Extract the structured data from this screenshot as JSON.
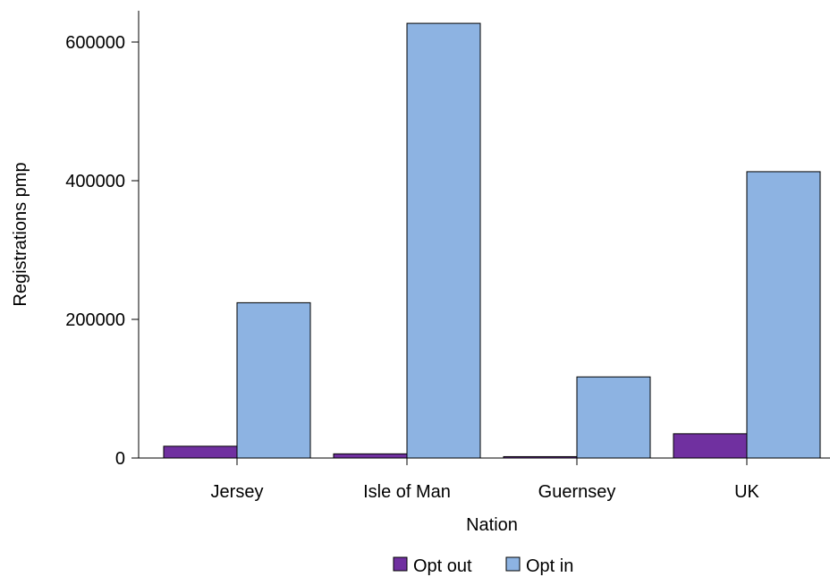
{
  "chart_data": {
    "type": "bar",
    "title": "",
    "xlabel": "Nation",
    "ylabel": "Registrations pmp",
    "categories": [
      "Jersey",
      "Isle of Man",
      "Guernsey",
      "UK"
    ],
    "series": [
      {
        "name": "Opt out",
        "values": [
          17000,
          6000,
          2000,
          35000
        ],
        "color": "#7030a0"
      },
      {
        "name": "Opt in",
        "values": [
          224000,
          627000,
          117000,
          413000
        ],
        "color": "#8db3e2"
      }
    ],
    "ylim": [
      0,
      640000
    ],
    "yticks": [
      0,
      200000,
      400000,
      600000
    ],
    "ytick_labels": [
      "0",
      "200000",
      "400000",
      "600000"
    ],
    "grid": false,
    "legend_position": "bottom-center"
  }
}
